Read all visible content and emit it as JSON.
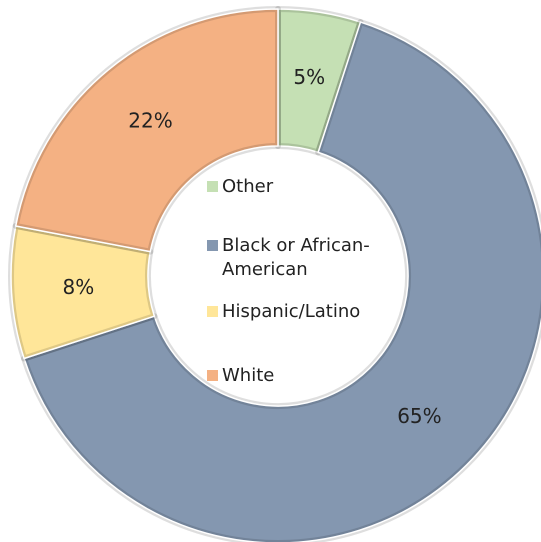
{
  "chart_data": {
    "type": "donut",
    "categories": [
      "Other",
      "Black or African-American",
      "Hispanic/Latino",
      "White"
    ],
    "values": [
      5,
      65,
      8,
      22
    ],
    "value_labels": [
      "5%",
      "65%",
      "8%",
      "22%"
    ],
    "colors": [
      "#c5e0b4",
      "#8497b0",
      "#ffe699",
      "#f4b183"
    ],
    "legend": "center"
  }
}
